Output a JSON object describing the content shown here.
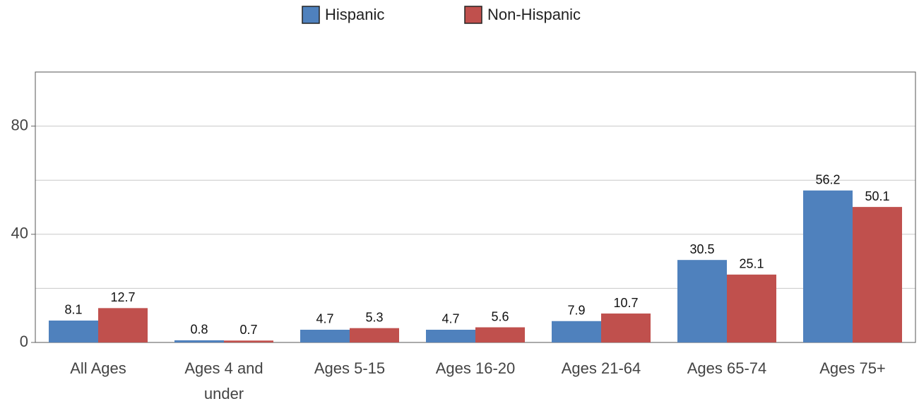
{
  "chart_data": {
    "type": "bar",
    "categories": [
      "All Ages",
      "Ages 4 and under",
      "Ages 5-15",
      "Ages 16-20",
      "Ages 21-64",
      "Ages 65-74",
      "Ages 75+"
    ],
    "series": [
      {
        "name": "Hispanic",
        "color": "#4f81bd",
        "values": [
          8.1,
          0.8,
          4.7,
          4.7,
          7.9,
          30.5,
          56.2
        ]
      },
      {
        "name": "Non-Hispanic",
        "color": "#c0504d",
        "values": [
          12.7,
          0.7,
          5.3,
          5.6,
          10.7,
          25.1,
          50.1
        ]
      }
    ],
    "ylim": [
      0,
      100
    ],
    "yticks": [
      0,
      40,
      80
    ],
    "minor_yticks": [
      20,
      60
    ],
    "grid": true,
    "legend": "top"
  }
}
